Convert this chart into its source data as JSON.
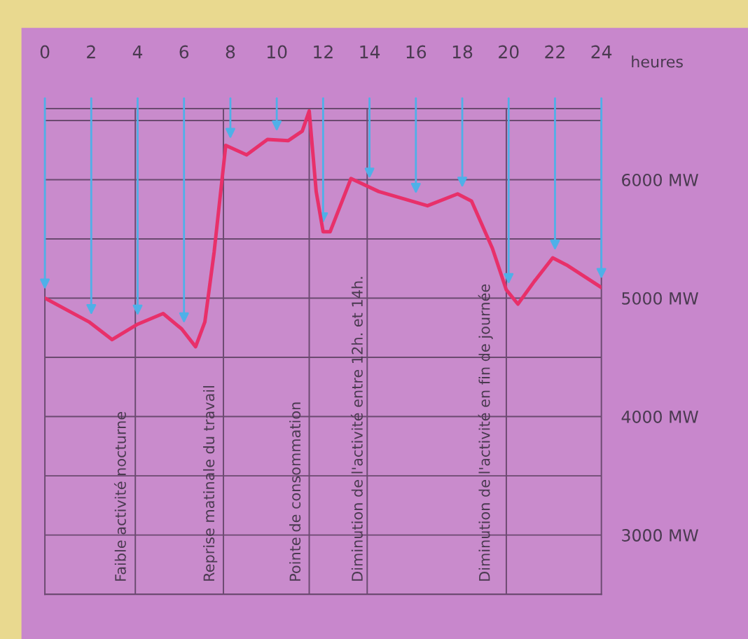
{
  "chart_data": {
    "type": "line",
    "xlabel": "heures",
    "x": [
      0,
      1.9,
      2.9,
      4.0,
      5.1,
      5.9,
      6.5,
      6.9,
      7.3,
      7.8,
      8.7,
      9.6,
      10.5,
      11.1,
      11.4,
      11.7,
      12.0,
      12.3,
      13.2,
      14.4,
      16.5,
      17.8,
      18.4,
      19.3,
      19.9,
      20.4,
      21.1,
      21.9,
      22.5,
      24
    ],
    "series": [
      {
        "color": "#e8306a",
        "values": [
          5000,
          4800,
          4650,
          4780,
          4870,
          4740,
          4590,
          4800,
          5390,
          6290,
          6210,
          6340,
          6330,
          6410,
          6580,
          5900,
          5560,
          5560,
          6010,
          5900,
          5780,
          5880,
          5820,
          5420,
          5070,
          4950,
          5140,
          5340,
          5280,
          5090
        ]
      }
    ],
    "xlim": [
      0,
      24
    ],
    "ylim": [
      2500,
      6600
    ],
    "xticks": [
      0,
      2,
      4,
      6,
      8,
      10,
      12,
      14,
      16,
      18,
      20,
      22,
      24
    ],
    "yticks": [
      {
        "value": 2500,
        "label": null
      },
      {
        "value": 3000,
        "label": "3000 MW"
      },
      {
        "value": 3500,
        "label": null
      },
      {
        "value": 4000,
        "label": "4000 MW"
      },
      {
        "value": 4500,
        "label": null
      },
      {
        "value": 5000,
        "label": "5000 MW"
      },
      {
        "value": 5500,
        "label": null
      },
      {
        "value": 6000,
        "label": "6000 MW"
      },
      {
        "value": 6500,
        "label": null
      }
    ],
    "grid": "y",
    "marker": "none",
    "line_style": "solid",
    "ref_lines": [
      {
        "axis": "x",
        "value": 3.9,
        "color": "#6b4a70"
      },
      {
        "axis": "x",
        "value": 7.7,
        "color": "#6b4a70"
      },
      {
        "axis": "x",
        "value": 11.4,
        "color": "#6b4a70"
      },
      {
        "axis": "x",
        "value": 13.9,
        "color": "#6b4a70"
      },
      {
        "axis": "x",
        "value": 19.9,
        "color": "#6b4a70"
      }
    ],
    "annotations": [
      "Faible activité nocturne",
      "Reprise matinale du travail",
      "Pointe de consommation",
      "Diminution de l'activité entre 12h. et 14h.",
      "Diminution de l'activité en fin de journée"
    ]
  }
}
